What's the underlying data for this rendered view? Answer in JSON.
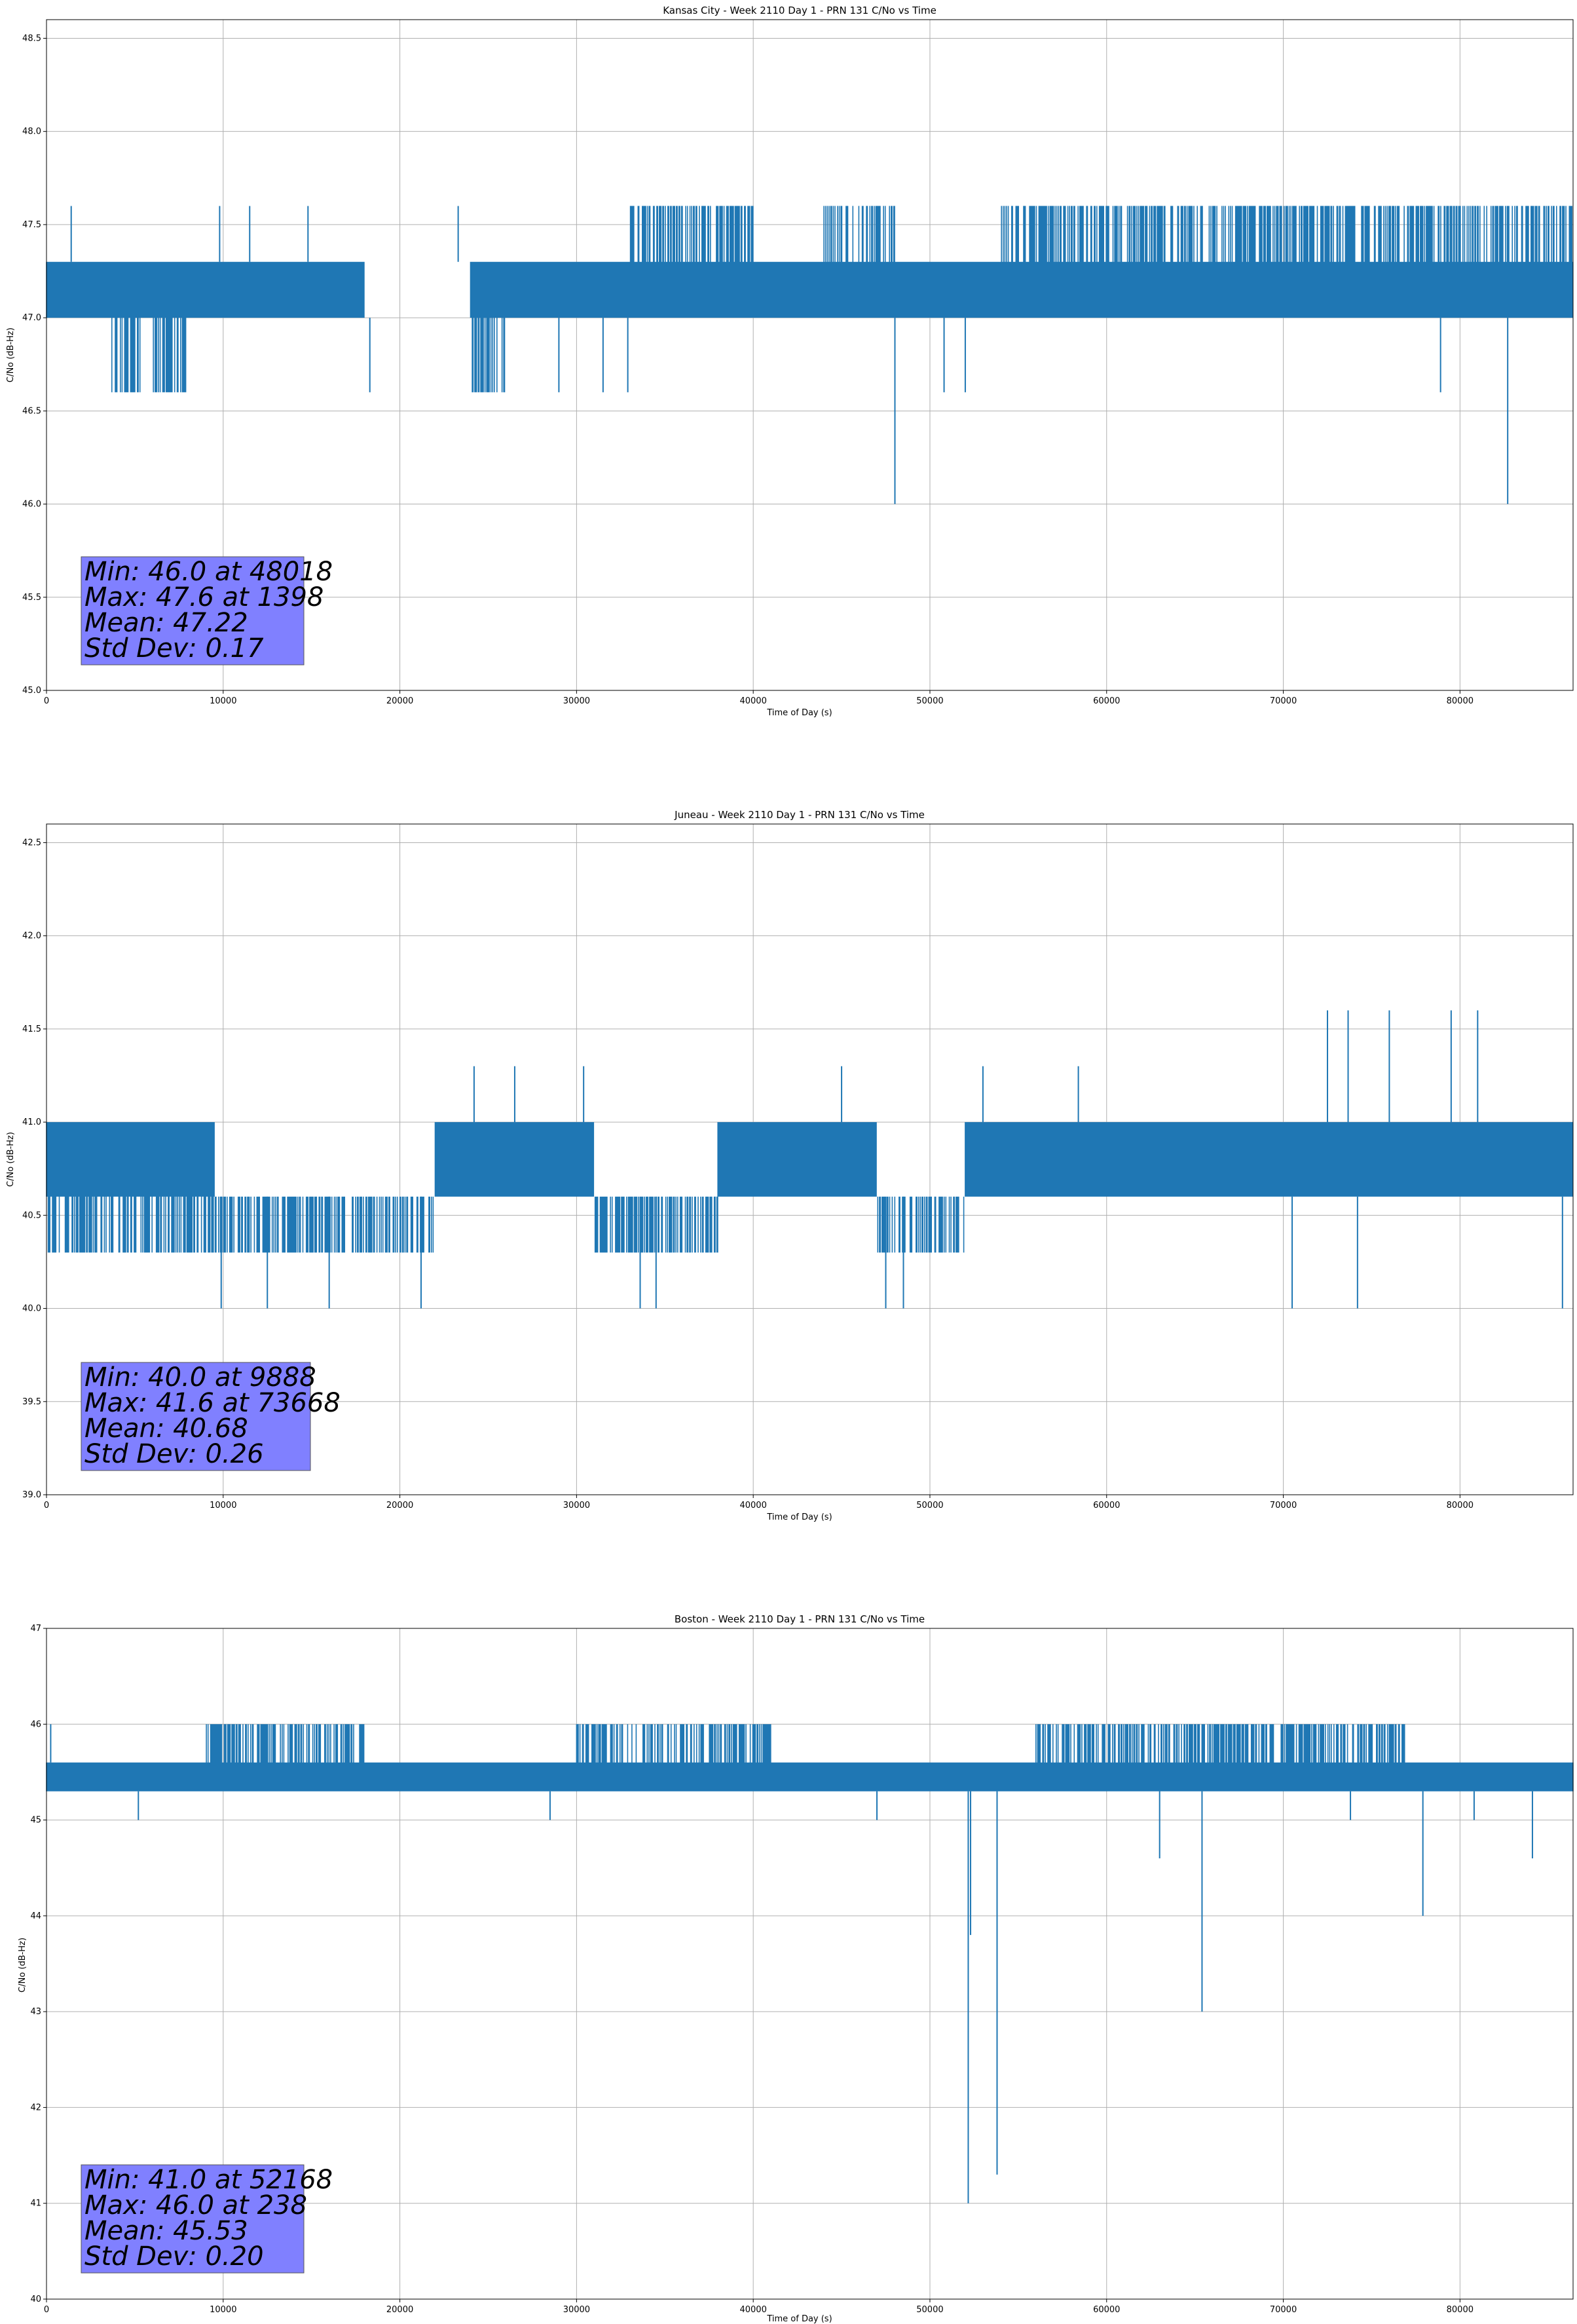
{
  "chart_data": [
    {
      "type": "line",
      "title": "Kansas City - Week 2110 Day 1 - PRN 131 C/No vs Time",
      "xlabel": "Time of Day (s)",
      "ylabel": "C/No (dB-Hz)",
      "xlim": [
        0,
        86400
      ],
      "ylim": [
        45.0,
        48.6
      ],
      "xticks": [
        0,
        10000,
        20000,
        30000,
        40000,
        50000,
        60000,
        70000,
        80000
      ],
      "yticks": [
        "45.0",
        "45.5",
        "46.0",
        "46.5",
        "47.0",
        "47.5",
        "48.0",
        "48.5"
      ],
      "grid": true,
      "color": "#1f77b4",
      "levels": [
        47.0,
        47.3
      ],
      "band_pattern": [
        {
          "x": [
            0,
            3700
          ],
          "lo": 47.0,
          "hi": 47.3
        },
        {
          "x": [
            3700,
            5300
          ],
          "lo": 46.6,
          "hi": 47.3
        },
        {
          "x": [
            5300,
            6000
          ],
          "lo": 47.0,
          "hi": 47.3
        },
        {
          "x": [
            6000,
            8000
          ],
          "lo": 46.6,
          "hi": 47.3
        },
        {
          "x": [
            8000,
            18000
          ],
          "lo": 47.0,
          "hi": 47.3
        },
        {
          "x": [
            24000,
            26000
          ],
          "lo": 46.6,
          "hi": 47.3
        },
        {
          "x": [
            26000,
            33000
          ],
          "lo": 47.0,
          "hi": 47.3
        },
        {
          "x": [
            33000,
            40000
          ],
          "lo": 47.0,
          "hi": 47.6
        },
        {
          "x": [
            40000,
            44000
          ],
          "lo": 47.0,
          "hi": 47.3
        },
        {
          "x": [
            44000,
            48000
          ],
          "lo": 47.0,
          "hi": 47.6
        },
        {
          "x": [
            48000,
            54000
          ],
          "lo": 47.0,
          "hi": 47.3
        },
        {
          "x": [
            54000,
            86400
          ],
          "lo": 47.0,
          "hi": 47.6
        }
      ],
      "spikes": [
        {
          "x": 1398,
          "y": 47.6
        },
        {
          "x": 9800,
          "y": 47.6
        },
        {
          "x": 11500,
          "y": 47.6
        },
        {
          "x": 14800,
          "y": 47.6
        },
        {
          "x": 18300,
          "y": 46.6
        },
        {
          "x": 23300,
          "y": 47.6
        },
        {
          "x": 29000,
          "y": 46.6
        },
        {
          "x": 31500,
          "y": 46.6
        },
        {
          "x": 32900,
          "y": 46.6
        },
        {
          "x": 48018,
          "y": 46.0
        },
        {
          "x": 50800,
          "y": 46.6
        },
        {
          "x": 52000,
          "y": 46.6
        },
        {
          "x": 78900,
          "y": 46.6
        },
        {
          "x": 82700,
          "y": 46.0
        }
      ],
      "stats": [
        "Min: 46.0 at 48018",
        "Max: 47.6 at 1398",
        "Mean: 47.22",
        "Std Dev: 0.17"
      ]
    },
    {
      "type": "line",
      "title": "Juneau - Week 2110 Day 1 - PRN 131 C/No vs Time",
      "xlabel": "Time of Day (s)",
      "ylabel": "C/No (dB-Hz)",
      "xlim": [
        0,
        86400
      ],
      "ylim": [
        39.0,
        42.6
      ],
      "xticks": [
        0,
        10000,
        20000,
        30000,
        40000,
        50000,
        60000,
        70000,
        80000
      ],
      "yticks": [
        "39.0",
        "39.5",
        "40.0",
        "40.5",
        "41.0",
        "41.5",
        "42.0",
        "42.5"
      ],
      "grid": true,
      "color": "#1f77b4",
      "levels": [
        40.3,
        40.6,
        41.0
      ],
      "band_pattern": [
        {
          "x": [
            0,
            9500
          ],
          "lo": 40.3,
          "hi": 41.0
        },
        {
          "x": [
            9500,
            22000
          ],
          "lo": 40.3,
          "hi": 40.6
        },
        {
          "x": [
            22000,
            31000
          ],
          "lo": 40.6,
          "hi": 41.0
        },
        {
          "x": [
            31000,
            38000
          ],
          "lo": 40.3,
          "hi": 40.6
        },
        {
          "x": [
            38000,
            47000
          ],
          "lo": 40.6,
          "hi": 41.0
        },
        {
          "x": [
            47000,
            52000
          ],
          "lo": 40.3,
          "hi": 40.6
        },
        {
          "x": [
            52000,
            86400
          ],
          "lo": 40.6,
          "hi": 41.0
        }
      ],
      "spikes": [
        {
          "x": 9888,
          "y": 40.0
        },
        {
          "x": 12500,
          "y": 40.0
        },
        {
          "x": 16000,
          "y": 40.0
        },
        {
          "x": 21200,
          "y": 40.0
        },
        {
          "x": 24200,
          "y": 41.3
        },
        {
          "x": 26500,
          "y": 41.3
        },
        {
          "x": 30400,
          "y": 41.3
        },
        {
          "x": 33600,
          "y": 40.0
        },
        {
          "x": 34500,
          "y": 40.0
        },
        {
          "x": 45000,
          "y": 41.3
        },
        {
          "x": 47500,
          "y": 40.0
        },
        {
          "x": 48500,
          "y": 40.0
        },
        {
          "x": 53000,
          "y": 41.3
        },
        {
          "x": 58400,
          "y": 41.3
        },
        {
          "x": 72500,
          "y": 41.6
        },
        {
          "x": 73668,
          "y": 41.6
        },
        {
          "x": 76000,
          "y": 41.6
        },
        {
          "x": 79500,
          "y": 41.6
        },
        {
          "x": 81000,
          "y": 41.6
        },
        {
          "x": 70500,
          "y": 40.0
        },
        {
          "x": 74200,
          "y": 40.0
        },
        {
          "x": 85800,
          "y": 40.0
        }
      ],
      "stats": [
        "Min: 40.0 at 9888",
        "Max: 41.6 at 73668",
        "Mean: 40.68",
        "Std Dev: 0.26"
      ]
    },
    {
      "type": "line",
      "title": "Boston - Week 2110 Day 1 - PRN 131 C/No vs Time",
      "xlabel": "Time of Day (s)",
      "ylabel": "C/No (dB-Hz)",
      "xlim": [
        0,
        86400
      ],
      "ylim": [
        40,
        47
      ],
      "xticks": [
        0,
        10000,
        20000,
        30000,
        40000,
        50000,
        60000,
        70000,
        80000
      ],
      "yticks": [
        "40",
        "41",
        "42",
        "43",
        "44",
        "45",
        "46",
        "47"
      ],
      "grid": true,
      "color": "#1f77b4",
      "levels": [
        45.3,
        45.6
      ],
      "band_pattern": [
        {
          "x": [
            0,
            9000
          ],
          "lo": 45.3,
          "hi": 45.6
        },
        {
          "x": [
            9000,
            18000
          ],
          "lo": 45.3,
          "hi": 46.0
        },
        {
          "x": [
            18000,
            30000
          ],
          "lo": 45.3,
          "hi": 45.6
        },
        {
          "x": [
            30000,
            41000
          ],
          "lo": 45.3,
          "hi": 46.0
        },
        {
          "x": [
            41000,
            56000
          ],
          "lo": 45.3,
          "hi": 45.6
        },
        {
          "x": [
            56000,
            77000
          ],
          "lo": 45.3,
          "hi": 46.0
        },
        {
          "x": [
            77000,
            86400
          ],
          "lo": 45.3,
          "hi": 45.6
        }
      ],
      "spikes": [
        {
          "x": 238,
          "y": 46.0
        },
        {
          "x": 5200,
          "y": 45.0
        },
        {
          "x": 28500,
          "y": 45.0
        },
        {
          "x": 47000,
          "y": 45.0
        },
        {
          "x": 52168,
          "y": 41.0
        },
        {
          "x": 52300,
          "y": 43.8
        },
        {
          "x": 53800,
          "y": 41.3
        },
        {
          "x": 63000,
          "y": 44.6
        },
        {
          "x": 65400,
          "y": 43.0
        },
        {
          "x": 77900,
          "y": 44.0
        },
        {
          "x": 84100,
          "y": 44.6
        },
        {
          "x": 73800,
          "y": 45.0
        },
        {
          "x": 80800,
          "y": 45.0
        }
      ],
      "stats": [
        "Min: 41.0 at 52168",
        "Max: 46.0 at 238",
        "Mean: 45.53",
        "Std Dev: 0.20"
      ]
    }
  ]
}
